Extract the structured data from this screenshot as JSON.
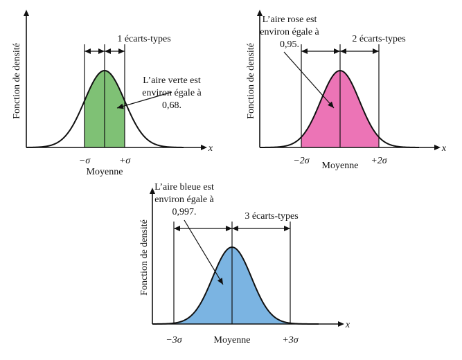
{
  "diagrams": [
    {
      "id": "one-sigma",
      "ylabel": "Fonction de densité",
      "xvar": "x",
      "bracket_label": "1 écarts-types",
      "annotation": [
        "L’aire verte est",
        "environ égale à",
        "0,68."
      ],
      "tick_left": "−σ",
      "tick_right": "+σ",
      "center_label": "Moyenne",
      "fill_color": "#7fc175",
      "sigma_span": 1,
      "area_fraction": 0.68
    },
    {
      "id": "two-sigma",
      "ylabel": "Fonction de densité",
      "xvar": "x",
      "bracket_label": "2 écarts-types",
      "annotation": [
        "L’aire rose est",
        "environ égale à",
        "0,95."
      ],
      "tick_left": "−2σ",
      "tick_right": "+2σ",
      "center_label": "Moyenne",
      "fill_color": "#ec74b6",
      "sigma_span": 2,
      "area_fraction": 0.95
    },
    {
      "id": "three-sigma",
      "ylabel": "Fonction de densité",
      "xvar": "x",
      "bracket_label": "3 écarts-types",
      "annotation": [
        "L’aire bleue est",
        "environ égale à",
        "0,997."
      ],
      "tick_left": "−3σ",
      "tick_right": "+3σ",
      "center_label": "Moyenne",
      "fill_color": "#7bb4e2",
      "sigma_span": 3,
      "area_fraction": 0.997
    }
  ]
}
